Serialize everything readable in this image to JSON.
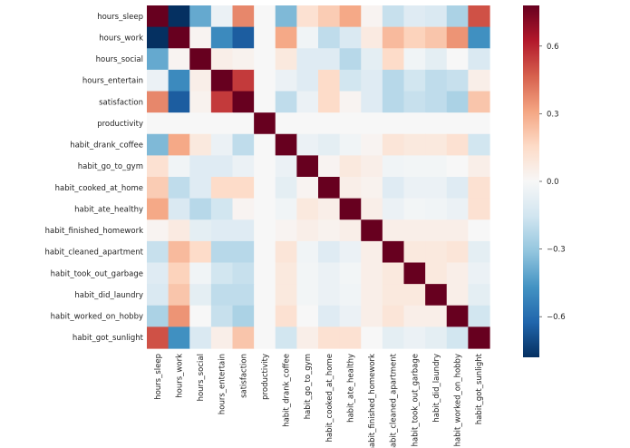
{
  "chart_data": {
    "type": "heatmap",
    "title": "",
    "xlabel": "",
    "ylabel": "",
    "labels": [
      "hours_sleep",
      "hours_work",
      "hours_social",
      "hours_entertain",
      "satisfaction",
      "productivity",
      "habit_drank_coffee",
      "habit_go_to_gym",
      "habit_cooked_at_home",
      "habit_ate_healthy",
      "habit_finished_homework",
      "habit_cleaned_apartment",
      "habit_took_out_garbage",
      "habit_did_laundry",
      "habit_worked_on_hobby",
      "habit_got_sunlight"
    ],
    "values": [
      [
        0.78,
        -0.78,
        -0.4,
        -0.05,
        0.38,
        0.0,
        -0.35,
        0.12,
        0.2,
        0.3,
        0.02,
        -0.18,
        -0.1,
        -0.12,
        -0.25,
        0.5
      ],
      [
        -0.78,
        0.78,
        0.02,
        -0.5,
        -0.65,
        0.0,
        0.3,
        -0.03,
        -0.2,
        -0.12,
        0.07,
        0.25,
        0.18,
        0.22,
        0.35,
        -0.48
      ],
      [
        -0.4,
        0.02,
        0.78,
        0.05,
        0.03,
        0.0,
        0.08,
        -0.1,
        -0.1,
        -0.22,
        -0.08,
        0.15,
        -0.03,
        -0.08,
        0.0,
        -0.12
      ],
      [
        -0.05,
        -0.5,
        0.05,
        0.78,
        0.55,
        0.0,
        -0.05,
        -0.1,
        0.15,
        -0.15,
        -0.1,
        -0.22,
        -0.15,
        -0.2,
        -0.18,
        0.05
      ],
      [
        0.38,
        -0.65,
        0.03,
        0.55,
        0.78,
        0.0,
        -0.2,
        -0.05,
        0.15,
        0.02,
        -0.1,
        -0.22,
        -0.18,
        -0.2,
        -0.25,
        0.22
      ],
      [
        0.0,
        0.0,
        0.0,
        0.0,
        0.0,
        0.78,
        0.0,
        0.0,
        0.0,
        0.0,
        0.0,
        0.0,
        0.0,
        0.0,
        0.0,
        0.0
      ],
      [
        -0.35,
        0.3,
        0.08,
        -0.05,
        -0.2,
        0.0,
        0.78,
        -0.05,
        -0.08,
        -0.03,
        0.02,
        0.1,
        0.08,
        0.08,
        0.12,
        -0.15
      ],
      [
        0.12,
        -0.03,
        -0.1,
        -0.1,
        -0.05,
        0.0,
        -0.05,
        0.78,
        0.02,
        0.08,
        0.05,
        -0.03,
        -0.02,
        -0.02,
        0.0,
        0.05
      ],
      [
        0.2,
        -0.2,
        -0.1,
        0.15,
        0.15,
        0.0,
        -0.08,
        0.02,
        0.78,
        0.05,
        0.03,
        -0.1,
        -0.05,
        -0.05,
        -0.1,
        0.12
      ],
      [
        0.3,
        -0.12,
        -0.22,
        -0.15,
        0.02,
        0.0,
        -0.03,
        0.08,
        0.05,
        0.78,
        0.05,
        -0.05,
        -0.02,
        -0.03,
        -0.05,
        0.12
      ],
      [
        0.02,
        0.07,
        -0.08,
        -0.1,
        -0.1,
        0.0,
        0.02,
        0.05,
        0.03,
        0.05,
        0.78,
        0.05,
        0.05,
        0.05,
        0.05,
        0.0
      ],
      [
        -0.18,
        0.25,
        0.15,
        -0.22,
        -0.22,
        0.0,
        0.1,
        -0.03,
        -0.1,
        -0.05,
        0.05,
        0.78,
        0.08,
        0.08,
        0.1,
        -0.08
      ],
      [
        -0.1,
        0.18,
        -0.03,
        -0.15,
        -0.18,
        0.0,
        0.08,
        -0.02,
        -0.05,
        -0.02,
        0.05,
        0.08,
        0.78,
        0.08,
        0.05,
        -0.05
      ],
      [
        -0.12,
        0.22,
        -0.08,
        -0.2,
        -0.2,
        0.0,
        0.08,
        -0.02,
        -0.05,
        -0.03,
        0.05,
        0.08,
        0.08,
        0.78,
        0.05,
        -0.08
      ],
      [
        -0.25,
        0.35,
        0.0,
        -0.18,
        -0.25,
        0.0,
        0.12,
        0.0,
        -0.1,
        -0.05,
        0.05,
        0.1,
        0.05,
        0.05,
        0.78,
        -0.15
      ],
      [
        0.5,
        -0.48,
        -0.12,
        0.05,
        0.22,
        0.0,
        -0.15,
        0.05,
        0.12,
        0.12,
        0.0,
        -0.08,
        -0.05,
        -0.08,
        -0.15,
        0.78
      ]
    ],
    "colorbar": {
      "vmin": -0.78,
      "vmax": 0.78,
      "ticks": [
        0.6,
        0.3,
        0.0,
        -0.3,
        -0.6
      ],
      "tick_labels": [
        "0.6",
        "0.3",
        "0.0",
        "−0.3",
        "−0.6"
      ],
      "colormap": "RdBu_r",
      "colors": [
        "#053061",
        "#2166ac",
        "#4393c3",
        "#92c5de",
        "#d1e5f0",
        "#f7f7f7",
        "#fddbc7",
        "#f4a582",
        "#d6604d",
        "#b2182b",
        "#67001f"
      ]
    }
  }
}
